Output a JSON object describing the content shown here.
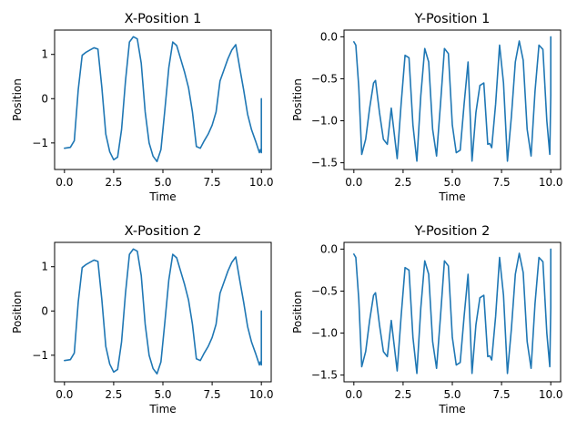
{
  "figure": {
    "line_color": "#1f77b4"
  },
  "chart_data": [
    {
      "type": "line",
      "title": "X-Position 1",
      "xlabel": "Time",
      "ylabel": "Position",
      "xlim": [
        -0.5,
        10.5
      ],
      "ylim": [
        -1.6,
        1.55
      ],
      "xticks": [
        0.0,
        2.5,
        5.0,
        7.5,
        10.0
      ],
      "xtick_labels": [
        "0.0",
        "2.5",
        "5.0",
        "7.5",
        "10.0"
      ],
      "yticks": [
        -1,
        0,
        1
      ],
      "ytick_labels": [
        "−1",
        "0",
        "1"
      ],
      "series": [
        {
          "x": [
            0.0,
            0.3,
            0.5,
            0.7,
            0.9,
            1.1,
            1.3,
            1.5,
            1.7,
            1.9,
            2.1,
            2.3,
            2.5,
            2.7,
            2.9,
            3.1,
            3.3,
            3.5,
            3.7,
            3.9,
            4.1,
            4.3,
            4.5,
            4.7,
            4.9,
            5.1,
            5.3,
            5.5,
            5.7,
            5.9,
            6.1,
            6.3,
            6.5,
            6.7,
            6.9,
            7.1,
            7.3,
            7.5,
            7.7,
            7.9,
            8.1,
            8.3,
            8.5,
            8.7,
            8.9,
            9.1,
            9.3,
            9.5,
            9.7,
            9.9,
            9.95,
            10.0,
            10.0
          ],
          "y": [
            -1.12,
            -1.1,
            -0.95,
            0.2,
            0.98,
            1.05,
            1.1,
            1.15,
            1.12,
            0.25,
            -0.8,
            -1.2,
            -1.38,
            -1.32,
            -0.7,
            0.4,
            1.28,
            1.4,
            1.35,
            0.8,
            -0.3,
            -1.0,
            -1.3,
            -1.42,
            -1.15,
            -0.25,
            0.7,
            1.28,
            1.2,
            0.9,
            0.6,
            0.25,
            -0.3,
            -1.08,
            -1.12,
            -0.95,
            -0.8,
            -0.6,
            -0.3,
            0.4,
            0.65,
            0.9,
            1.1,
            1.22,
            0.7,
            0.2,
            -0.35,
            -0.7,
            -0.95,
            -1.22,
            -1.15,
            -1.22,
            0.0
          ]
        }
      ]
    },
    {
      "type": "line",
      "title": "Y-Position 1",
      "xlabel": "Time",
      "ylabel": "Position",
      "xlim": [
        -0.5,
        10.5
      ],
      "ylim": [
        -1.58,
        0.08
      ],
      "xticks": [
        0.0,
        2.5,
        5.0,
        7.5,
        10.0
      ],
      "xtick_labels": [
        "0.0",
        "2.5",
        "5.0",
        "7.5",
        "10.0"
      ],
      "yticks": [
        -1.5,
        -1.0,
        -0.5,
        0.0
      ],
      "ytick_labels": [
        "−1.5",
        "−1.0",
        "−0.5",
        "0.0"
      ],
      "series": [
        {
          "x": [
            0.0,
            0.1,
            0.25,
            0.4,
            0.6,
            0.8,
            1.0,
            1.1,
            1.3,
            1.5,
            1.7,
            1.9,
            2.05,
            2.2,
            2.4,
            2.6,
            2.8,
            3.0,
            3.2,
            3.4,
            3.6,
            3.8,
            4.0,
            4.2,
            4.4,
            4.6,
            4.8,
            5.0,
            5.2,
            5.4,
            5.6,
            5.8,
            6.0,
            6.2,
            6.4,
            6.6,
            6.8,
            6.9,
            7.0,
            7.2,
            7.4,
            7.6,
            7.8,
            8.0,
            8.2,
            8.4,
            8.6,
            8.8,
            9.0,
            9.2,
            9.4,
            9.6,
            9.8,
            9.95,
            10.0,
            10.0
          ],
          "y": [
            -0.06,
            -0.1,
            -0.6,
            -1.4,
            -1.22,
            -0.85,
            -0.55,
            -0.52,
            -0.9,
            -1.22,
            -1.28,
            -0.85,
            -1.15,
            -1.45,
            -0.8,
            -0.22,
            -0.25,
            -1.05,
            -1.48,
            -0.7,
            -0.14,
            -0.3,
            -1.1,
            -1.42,
            -0.8,
            -0.14,
            -0.2,
            -1.05,
            -1.38,
            -1.35,
            -0.8,
            -0.3,
            -1.48,
            -0.9,
            -0.58,
            -0.55,
            -1.28,
            -1.27,
            -1.32,
            -0.8,
            -0.1,
            -0.55,
            -1.48,
            -0.95,
            -0.3,
            -0.05,
            -0.28,
            -1.1,
            -1.42,
            -0.65,
            -0.1,
            -0.15,
            -1.0,
            -1.4,
            -0.7,
            0.0
          ]
        }
      ]
    },
    {
      "type": "line",
      "title": "X-Position 2",
      "xlabel": "Time",
      "ylabel": "Position",
      "xlim": [
        -0.5,
        10.5
      ],
      "ylim": [
        -1.6,
        1.55
      ],
      "xticks": [
        0.0,
        2.5,
        5.0,
        7.5,
        10.0
      ],
      "xtick_labels": [
        "0.0",
        "2.5",
        "5.0",
        "7.5",
        "10.0"
      ],
      "yticks": [
        -1,
        0,
        1
      ],
      "ytick_labels": [
        "−1",
        "0",
        "1"
      ],
      "series": [
        {
          "x": [
            0.0,
            0.3,
            0.5,
            0.7,
            0.9,
            1.1,
            1.3,
            1.5,
            1.7,
            1.9,
            2.1,
            2.3,
            2.5,
            2.7,
            2.9,
            3.1,
            3.3,
            3.5,
            3.7,
            3.9,
            4.1,
            4.3,
            4.5,
            4.7,
            4.9,
            5.1,
            5.3,
            5.5,
            5.7,
            5.9,
            6.1,
            6.3,
            6.5,
            6.7,
            6.9,
            7.1,
            7.3,
            7.5,
            7.7,
            7.9,
            8.1,
            8.3,
            8.5,
            8.7,
            8.9,
            9.1,
            9.3,
            9.5,
            9.7,
            9.9,
            9.95,
            10.0,
            10.0
          ],
          "y": [
            -1.12,
            -1.1,
            -0.95,
            0.2,
            0.98,
            1.05,
            1.1,
            1.15,
            1.12,
            0.25,
            -0.8,
            -1.2,
            -1.38,
            -1.32,
            -0.7,
            0.4,
            1.28,
            1.4,
            1.35,
            0.8,
            -0.3,
            -1.0,
            -1.3,
            -1.42,
            -1.15,
            -0.25,
            0.7,
            1.28,
            1.2,
            0.9,
            0.6,
            0.25,
            -0.3,
            -1.08,
            -1.12,
            -0.95,
            -0.8,
            -0.6,
            -0.3,
            0.4,
            0.65,
            0.9,
            1.1,
            1.22,
            0.7,
            0.2,
            -0.35,
            -0.7,
            -0.95,
            -1.22,
            -1.15,
            -1.22,
            0.0
          ]
        }
      ]
    },
    {
      "type": "line",
      "title": "Y-Position 2",
      "xlabel": "Time",
      "ylabel": "Position",
      "xlim": [
        -0.5,
        10.5
      ],
      "ylim": [
        -1.58,
        0.08
      ],
      "xticks": [
        0.0,
        2.5,
        5.0,
        7.5,
        10.0
      ],
      "xtick_labels": [
        "0.0",
        "2.5",
        "5.0",
        "7.5",
        "10.0"
      ],
      "yticks": [
        -1.5,
        -1.0,
        -0.5,
        0.0
      ],
      "ytick_labels": [
        "−1.5",
        "−1.0",
        "−0.5",
        "0.0"
      ],
      "series": [
        {
          "x": [
            0.0,
            0.1,
            0.25,
            0.4,
            0.6,
            0.8,
            1.0,
            1.1,
            1.3,
            1.5,
            1.7,
            1.9,
            2.05,
            2.2,
            2.4,
            2.6,
            2.8,
            3.0,
            3.2,
            3.4,
            3.6,
            3.8,
            4.0,
            4.2,
            4.4,
            4.6,
            4.8,
            5.0,
            5.2,
            5.4,
            5.6,
            5.8,
            6.0,
            6.2,
            6.4,
            6.6,
            6.8,
            6.9,
            7.0,
            7.2,
            7.4,
            7.6,
            7.8,
            8.0,
            8.2,
            8.4,
            8.6,
            8.8,
            9.0,
            9.2,
            9.4,
            9.6,
            9.8,
            9.95,
            10.0,
            10.0
          ],
          "y": [
            -0.06,
            -0.1,
            -0.6,
            -1.4,
            -1.22,
            -0.85,
            -0.55,
            -0.52,
            -0.9,
            -1.22,
            -1.28,
            -0.85,
            -1.15,
            -1.45,
            -0.8,
            -0.22,
            -0.25,
            -1.05,
            -1.48,
            -0.7,
            -0.14,
            -0.3,
            -1.1,
            -1.42,
            -0.8,
            -0.14,
            -0.2,
            -1.05,
            -1.38,
            -1.35,
            -0.8,
            -0.3,
            -1.48,
            -0.9,
            -0.58,
            -0.55,
            -1.28,
            -1.27,
            -1.32,
            -0.8,
            -0.1,
            -0.55,
            -1.48,
            -0.95,
            -0.3,
            -0.05,
            -0.28,
            -1.1,
            -1.42,
            -0.65,
            -0.1,
            -0.15,
            -1.0,
            -1.4,
            -0.7,
            0.0
          ]
        }
      ]
    }
  ]
}
